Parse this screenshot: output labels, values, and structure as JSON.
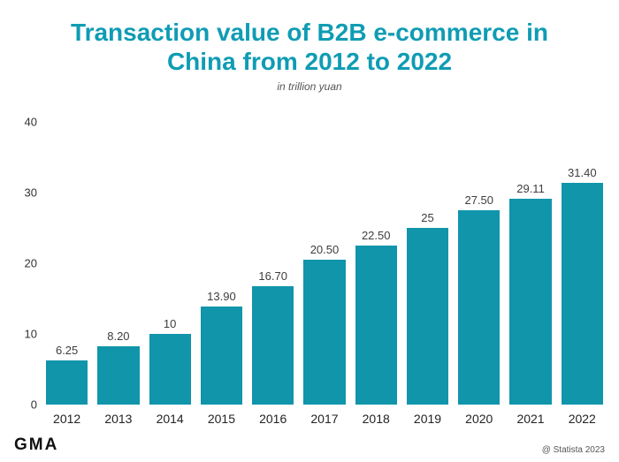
{
  "title": "Transaction value of B2B e-commerce in China from 2012 to 2022",
  "subtitle": "in trillion yuan",
  "footer": {
    "logo": "GMA",
    "credit": "@ Statista 2023"
  },
  "colors": {
    "bar": "#1095ab",
    "title": "#0f9cb4"
  },
  "chart_data": {
    "type": "bar",
    "title": "Transaction value of B2B e-commerce in China from 2012 to 2022",
    "subtitle": "in trillion yuan",
    "xlabel": "",
    "ylabel": "in trillion yuan",
    "ylim": [
      0,
      40
    ],
    "yticks": [
      0,
      10,
      20,
      30,
      40
    ],
    "grid": false,
    "legend": "none",
    "bar_color": "#1095ab",
    "categories": [
      "2012",
      "2013",
      "2014",
      "2015",
      "2016",
      "2017",
      "2018",
      "2019",
      "2020",
      "2021",
      "2022"
    ],
    "values": [
      6.25,
      8.2,
      10,
      13.9,
      16.7,
      20.5,
      22.5,
      25,
      27.5,
      29.11,
      31.4
    ],
    "value_labels": [
      "6.25",
      "8.20",
      "10",
      "13.90",
      "16.70",
      "20.50",
      "22.50",
      "25",
      "27.50",
      "29.11",
      "31.40"
    ]
  }
}
